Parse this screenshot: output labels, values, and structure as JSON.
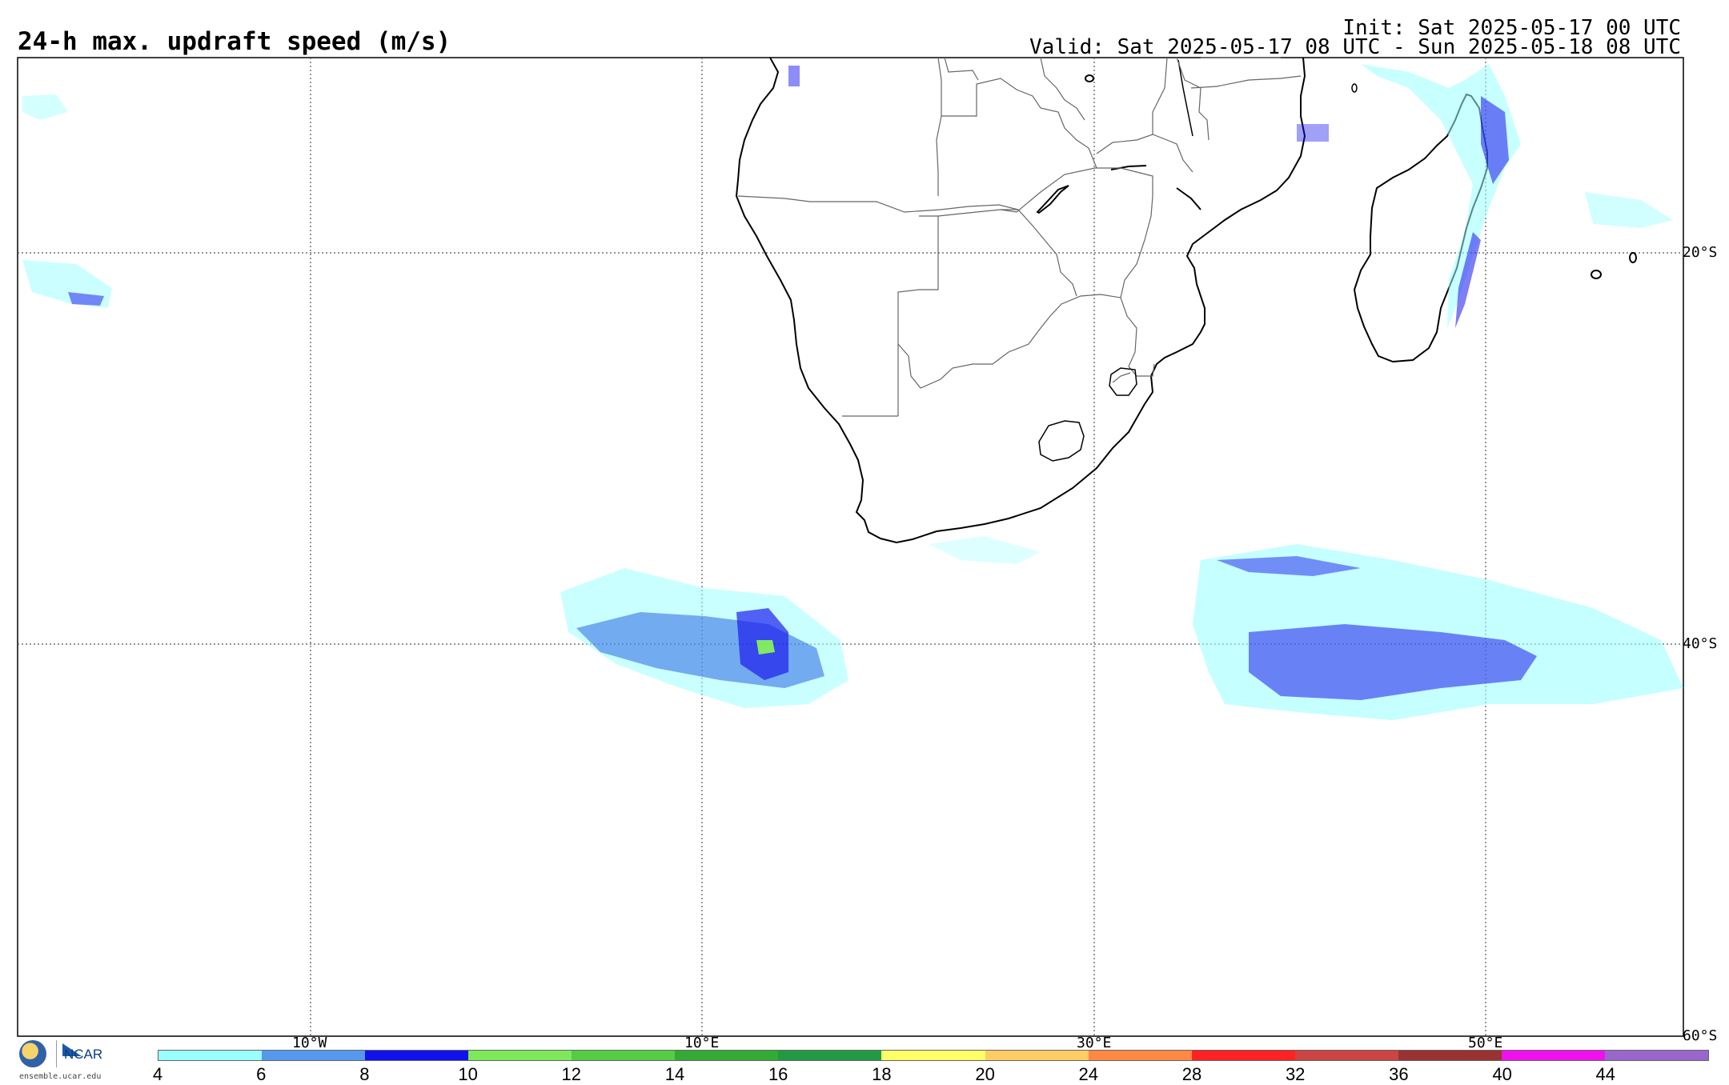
{
  "header": {
    "title": "24-h max. updraft speed (m/s)",
    "init": "Init: Sat 2025-05-17 00 UTC",
    "valid": "Valid: Sat 2025-05-17 08 UTC - Sun 2025-05-18 08 UTC"
  },
  "map": {
    "lon_labels": [
      "10°W",
      "10°E",
      "30°E",
      "50°E"
    ],
    "lat_labels": [
      "20°S",
      "40°S",
      "60°S"
    ]
  },
  "logo": {
    "org": "NCAR",
    "site": "ensemble.ucar.edu"
  },
  "colorbar": {
    "ticks": [
      "4",
      "6",
      "8",
      "10",
      "12",
      "14",
      "16",
      "18",
      "20",
      "24",
      "28",
      "32",
      "36",
      "40",
      "44"
    ],
    "colors": [
      "#99ffff",
      "#5599ee",
      "#1111ee",
      "#7de85a",
      "#55cc44",
      "#33aa33",
      "#229944",
      "#ffff66",
      "#ffcc66",
      "#ff8844",
      "#ff2222",
      "#cc4444",
      "#993333",
      "#ee11ee",
      "#9966cc"
    ]
  }
}
